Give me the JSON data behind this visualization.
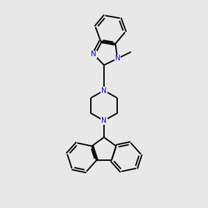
{
  "bg_color": "#e8e8e8",
  "bond_color": "#000000",
  "n_color": "#0000ee",
  "line_width": 1.4,
  "figsize": [
    3.0,
    3.0
  ],
  "dpi": 100,
  "xlim": [
    0,
    10
  ],
  "ylim": [
    0,
    10
  ]
}
